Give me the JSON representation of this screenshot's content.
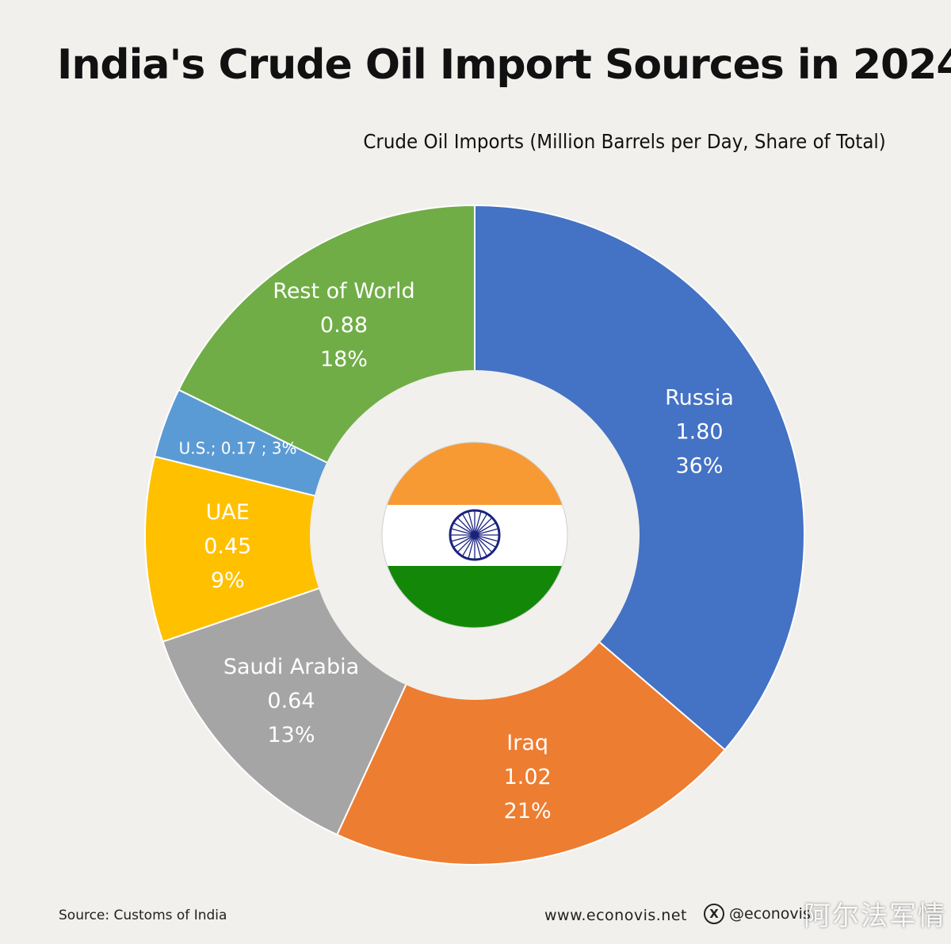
{
  "header": {
    "title": "India's Crude Oil Import Sources in 2024",
    "subtitle": "Crude Oil Imports (Million Barrels per Day, Share of Total)"
  },
  "footer": {
    "source": "Source: Customs of India",
    "website": "www.econovis.net",
    "x_glyph": "X",
    "handle": "@econovis",
    "watermark": "阿尔法军情"
  },
  "center_image": {
    "icon": "india-flag",
    "colors": {
      "saffron": "#f79a34",
      "white": "#ffffff",
      "green": "#138808",
      "chakra": "#1a237e"
    }
  },
  "chart_data": {
    "type": "pie",
    "variant": "donut",
    "units": "Million Barrels per Day",
    "slices": [
      {
        "name": "Russia",
        "value": 1.8,
        "value_label": "1.80",
        "share": "36%",
        "color": "#4472c4"
      },
      {
        "name": "Iraq",
        "value": 1.02,
        "value_label": "1.02",
        "share": "21%",
        "color": "#ed7d31"
      },
      {
        "name": "Saudi Arabia",
        "value": 0.64,
        "value_label": "0.64",
        "share": "13%",
        "color": "#a5a5a5"
      },
      {
        "name": "UAE",
        "value": 0.45,
        "value_label": "0.45",
        "share": "9%",
        "color": "#ffc000"
      },
      {
        "name": "U.S.",
        "value": 0.17,
        "value_label": "0.17",
        "share": "3%",
        "color": "#5b9bd5",
        "inline_label": "U.S.;  0.17 ; 3%"
      },
      {
        "name": "Rest of World",
        "value": 0.88,
        "value_label": "0.88",
        "share": "18%",
        "color": "#70ad47"
      }
    ]
  }
}
